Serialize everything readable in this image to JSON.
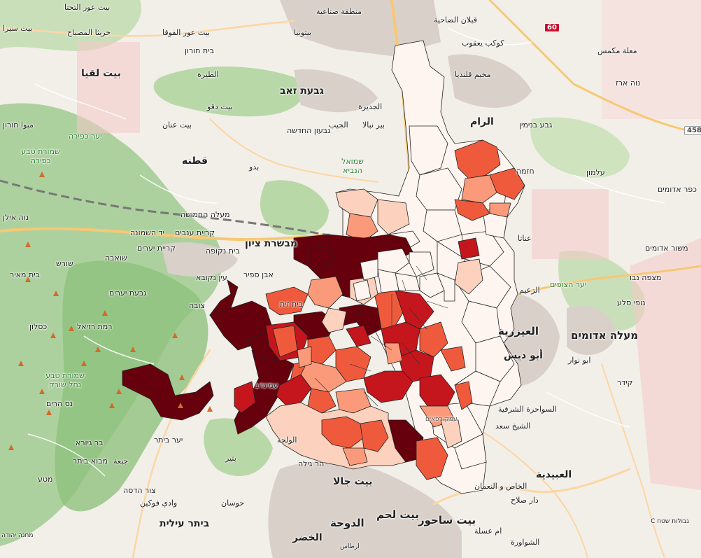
{
  "map": {
    "colors": {
      "water": "#aad3df",
      "land": "#f2efe9",
      "forest": "#add19e",
      "forest_dark": "#8ec27d",
      "urban": "#d9d0c9",
      "road_major": "#f7c873",
      "road_primary": "#fcd6a4",
      "choropleth": [
        "#fff5f0",
        "#fcd1bd",
        "#fb9a7a",
        "#ef5a3c",
        "#c4161c",
        "#67000d"
      ]
    },
    "road_shields": [
      "60",
      "458"
    ],
    "labels": [
      {
        "text": "بيت عور التحتا"
      },
      {
        "text": "بيت سيرا"
      },
      {
        "text": "خربثا المصباح"
      },
      {
        "text": "بيت عور الفوقا"
      },
      {
        "text": "بيت لقيا"
      },
      {
        "text": "בית חורון"
      },
      {
        "text": "الطيرة"
      },
      {
        "text": "منطقة صناعية"
      },
      {
        "text": "بيتونيا"
      },
      {
        "text": "قبلان الضاحية"
      },
      {
        "text": "كوكب يعقوب"
      },
      {
        "text": "معلة مكمس"
      },
      {
        "text": "مخيم قلنديا"
      },
      {
        "text": "גבעת זאב"
      },
      {
        "text": "بيت دقو"
      },
      {
        "text": "بيت عنان"
      },
      {
        "text": "גבעון החדשה"
      },
      {
        "text": "الجديرة"
      },
      {
        "text": "بير نبالا"
      },
      {
        "text": "الجيب"
      },
      {
        "text": "الرام"
      },
      {
        "text": "גבע בנימין"
      },
      {
        "text": "נוה ארז"
      },
      {
        "text": "مبوا חורון"
      },
      {
        "text": "יער כפירה"
      },
      {
        "text": "שמורת טבע כפירה"
      },
      {
        "text": "قطنه"
      },
      {
        "text": "بدو"
      },
      {
        "text": "שמואל הנביא"
      },
      {
        "text": "עלמון"
      },
      {
        "text": "כפר אדומים"
      },
      {
        "text": "מעלה החמישה"
      },
      {
        "text": "יד השמונה"
      },
      {
        "text": "קריית ענבים"
      },
      {
        "text": "בית נקופה"
      },
      {
        "text": "מבשרת ציון"
      },
      {
        "text": "קריית יערים"
      },
      {
        "text": "שורש"
      },
      {
        "text": "שואבה"
      },
      {
        "text": "בית מאיר"
      },
      {
        "text": "נוה אילן"
      },
      {
        "text": "גבעת יערים"
      },
      {
        "text": "צובה"
      },
      {
        "text": "עין נקובא"
      },
      {
        "text": "כסלון"
      },
      {
        "text": "רמת רזיאל"
      },
      {
        "text": "שמורת טבע נחל שורק"
      },
      {
        "text": "נס הרים"
      },
      {
        "text": "בר גיורא"
      },
      {
        "text": "מבוא ביתר"
      },
      {
        "text": "צור הדסה"
      },
      {
        "text": "ביתר עילית"
      },
      {
        "text": "מטע"
      },
      {
        "text": "جبعة"
      },
      {
        "text": "وادي فوكين"
      },
      {
        "text": "حوسان"
      },
      {
        "text": "بتير"
      },
      {
        "text": "الولجة"
      },
      {
        "text": "עמינדב"
      },
      {
        "text": "הר גילה"
      },
      {
        "text": "بيت جالا"
      },
      {
        "text": "بيت لحم"
      },
      {
        "text": "بيت ساحور"
      },
      {
        "text": "الدوحة"
      },
      {
        "text": "الخضر"
      },
      {
        "text": "ارطاس"
      },
      {
        "text": "العيزرية"
      },
      {
        "text": "أبو ديس"
      },
      {
        "text": "السواحرة الشرقية"
      },
      {
        "text": "الشيخ سعد"
      },
      {
        "text": "العبيدية"
      },
      {
        "text": "دار صلاح"
      },
      {
        "text": "الخاص و النعمان"
      },
      {
        "text": "ابو نوار"
      },
      {
        "text": "קידר"
      },
      {
        "text": "מעלה אדומים"
      },
      {
        "text": "מצפה נבו"
      },
      {
        "text": "נופי סלע"
      },
      {
        "text": "יער הצופים"
      },
      {
        "text": "משור אדומים"
      },
      {
        "text": "חזמה"
      },
      {
        "text": "عناتا"
      },
      {
        "text": "الزعيم"
      },
      {
        "text": "ام عسلة"
      },
      {
        "text": "الشواورة"
      },
      {
        "text": "עמק רפאים"
      },
      {
        "text": "בית זית"
      },
      {
        "text": "אבן ספיר"
      },
      {
        "text": "יער ביתר"
      },
      {
        "text": "מחנה יהודה"
      },
      {
        "text": "גבולות שטח C"
      }
    ]
  }
}
